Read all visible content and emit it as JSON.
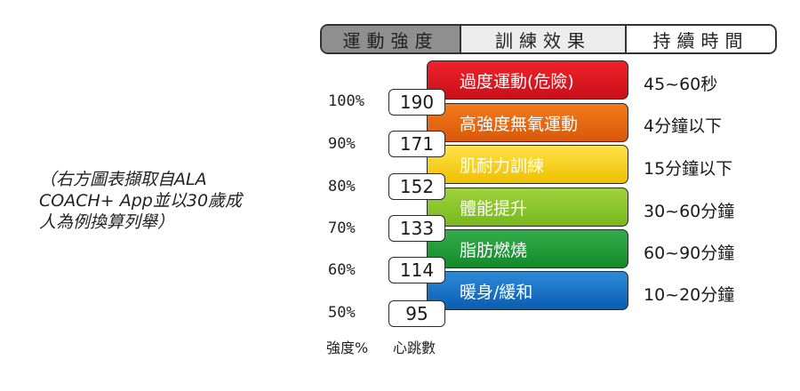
{
  "caption": {
    "line1": "（右方圖表擷取自ALA",
    "line2": "COACH+ App並以30歲成",
    "line3": "人為例換算列舉）"
  },
  "header": {
    "col1": "運動強度",
    "col2": "訓練效果",
    "col3": "持續時間"
  },
  "zones": [
    {
      "label": "過度運動(危險)",
      "duration": "45~60秒",
      "color": "#e21b24"
    },
    {
      "label": "高強度無氧運動",
      "duration": "4分鐘以下",
      "color": "#ea6a12"
    },
    {
      "label": "肌耐力訓練",
      "duration": "15分鐘以下",
      "color": "#f6d21c"
    },
    {
      "label": "體能提升",
      "duration": "30~60分鐘",
      "color": "#8cc52d"
    },
    {
      "label": "脂肪燃燒",
      "duration": "60~90分鐘",
      "color": "#239c3a"
    },
    {
      "label": "暖身/緩和",
      "duration": "10~20分鐘",
      "color": "#1c72c5"
    }
  ],
  "intensity_percent": [
    "100%",
    "90%",
    "80%",
    "70%",
    "60%",
    "50%"
  ],
  "heart_rates": [
    "190",
    "171",
    "152",
    "133",
    "114",
    "95"
  ],
  "axis_labels": {
    "intensity": "強度%",
    "heart_rate": "心跳數"
  }
}
